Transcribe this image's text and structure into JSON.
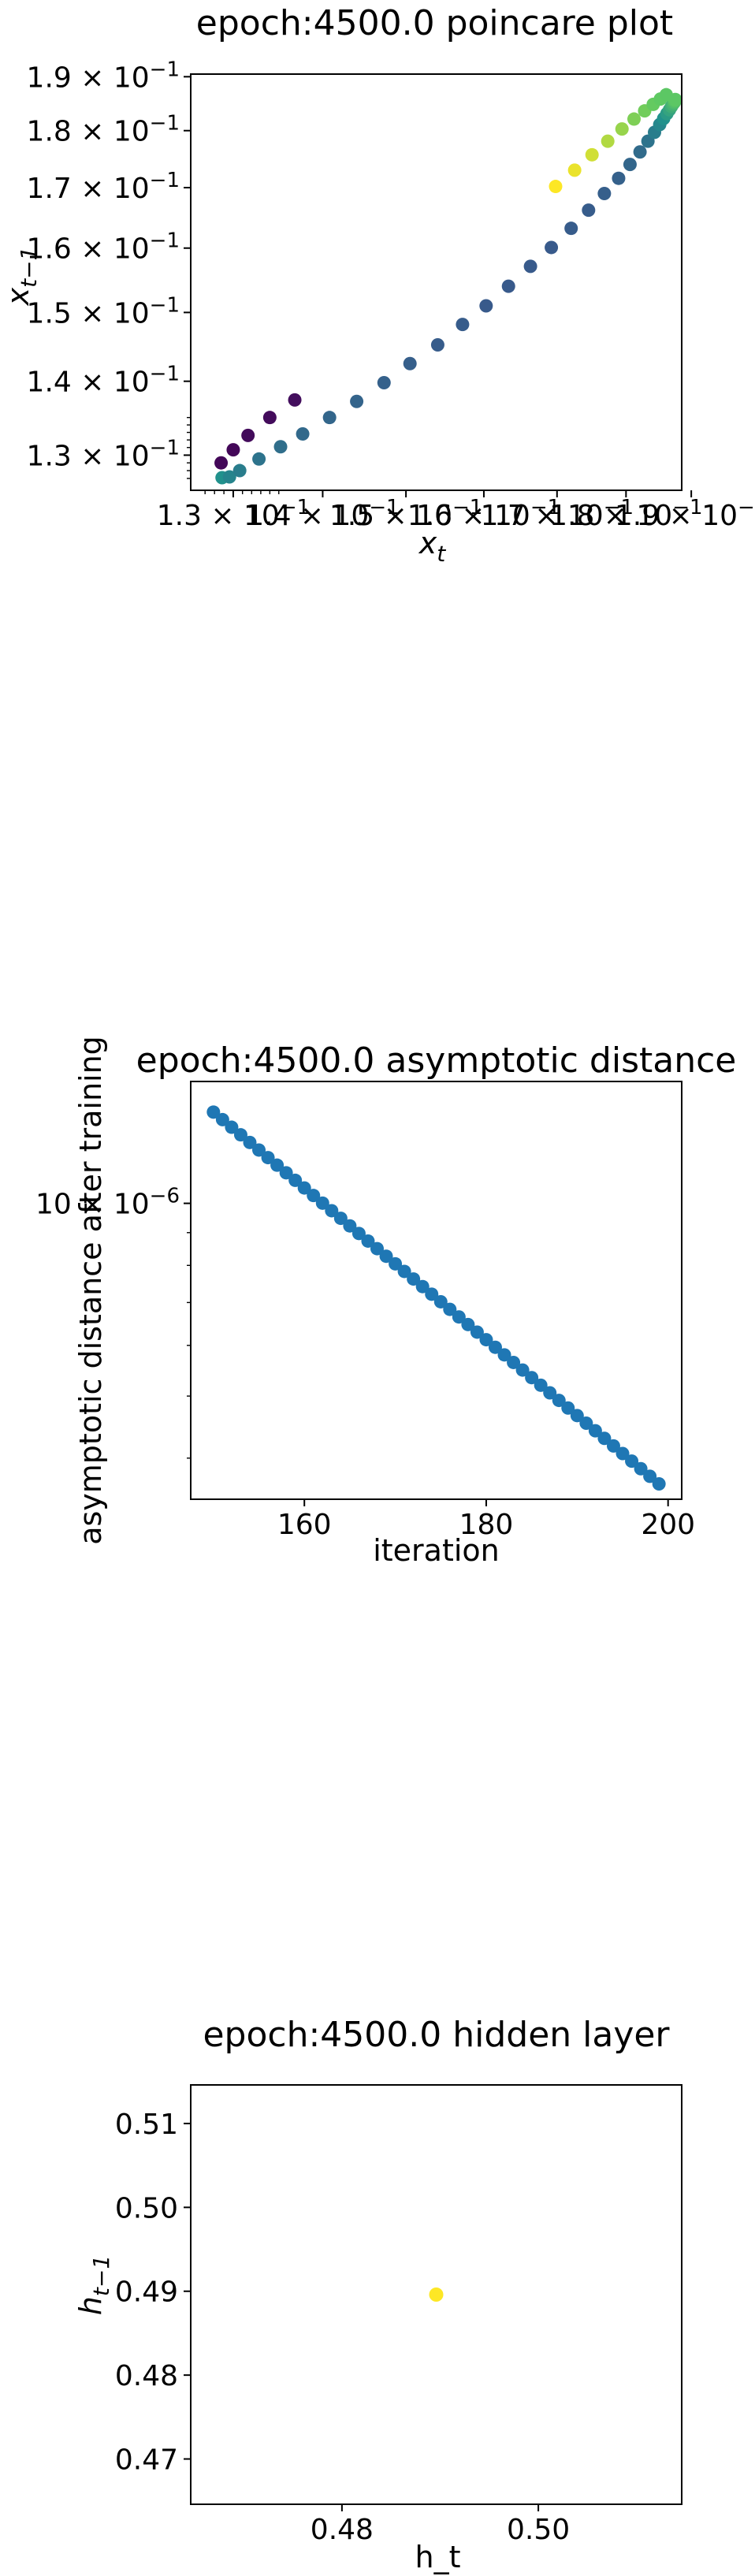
{
  "chart_data": [
    {
      "type": "scatter",
      "title": "epoch:4500.0 poincare plot",
      "xlabel": "x_t",
      "ylabel": "x_{t-1}",
      "xscale": "log",
      "yscale": "log",
      "xlim": [
        0.1255,
        0.1885
      ],
      "ylim": [
        0.1255,
        0.1905
      ],
      "grid": false,
      "legend": "none",
      "colormap": "viridis",
      "x_ticks": [
        0.13,
        0.14,
        0.15,
        0.16,
        0.17,
        0.18,
        0.19
      ],
      "x_tick_labels": [
        {
          "mantissa": "1.3",
          "exponent": "−1"
        },
        {
          "mantissa": "1.4",
          "exponent": "−1"
        },
        {
          "mantissa": "1.5",
          "exponent": "−1"
        },
        {
          "mantissa": "1.6",
          "exponent": "−1"
        },
        {
          "mantissa": "1.7",
          "exponent": "−1"
        },
        {
          "mantissa": "1.8",
          "exponent": "−1"
        },
        {
          "mantissa": "1.9",
          "exponent": "−1"
        }
      ],
      "y_ticks": [
        0.13,
        0.14,
        0.15,
        0.16,
        0.17,
        0.18,
        0.19
      ],
      "y_tick_labels": [
        {
          "mantissa": "1.3",
          "exponent": "−1"
        },
        {
          "mantissa": "1.4",
          "exponent": "−1"
        },
        {
          "mantissa": "1.5",
          "exponent": "−1"
        },
        {
          "mantissa": "1.6",
          "exponent": "−1"
        },
        {
          "mantissa": "1.7",
          "exponent": "−1"
        },
        {
          "mantissa": "1.8",
          "exponent": "−1"
        },
        {
          "mantissa": "1.9",
          "exponent": "−1"
        }
      ],
      "points": [
        {
          "x": 0.1288,
          "y": 0.1271,
          "c": 0.5
        },
        {
          "x": 0.1296,
          "y": 0.1272,
          "c": 0.45
        },
        {
          "x": 0.1307,
          "y": 0.128,
          "c": 0.42
        },
        {
          "x": 0.1328,
          "y": 0.1295,
          "c": 0.38
        },
        {
          "x": 0.1352,
          "y": 0.1311,
          "c": 0.36
        },
        {
          "x": 0.1377,
          "y": 0.1328,
          "c": 0.34
        },
        {
          "x": 0.1408,
          "y": 0.135,
          "c": 0.33
        },
        {
          "x": 0.144,
          "y": 0.1372,
          "c": 0.32
        },
        {
          "x": 0.1473,
          "y": 0.1398,
          "c": 0.31
        },
        {
          "x": 0.1505,
          "y": 0.1425,
          "c": 0.3
        },
        {
          "x": 0.154,
          "y": 0.1452,
          "c": 0.29
        },
        {
          "x": 0.1572,
          "y": 0.1482,
          "c": 0.29
        },
        {
          "x": 0.1603,
          "y": 0.151,
          "c": 0.28
        },
        {
          "x": 0.1633,
          "y": 0.154,
          "c": 0.28
        },
        {
          "x": 0.1663,
          "y": 0.1571,
          "c": 0.28
        },
        {
          "x": 0.1692,
          "y": 0.1601,
          "c": 0.28
        },
        {
          "x": 0.172,
          "y": 0.1632,
          "c": 0.29
        },
        {
          "x": 0.1745,
          "y": 0.1662,
          "c": 0.29
        },
        {
          "x": 0.1768,
          "y": 0.169,
          "c": 0.3
        },
        {
          "x": 0.1789,
          "y": 0.1716,
          "c": 0.31
        },
        {
          "x": 0.1806,
          "y": 0.174,
          "c": 0.33
        },
        {
          "x": 0.1821,
          "y": 0.1762,
          "c": 0.35
        },
        {
          "x": 0.1833,
          "y": 0.1781,
          "c": 0.38
        },
        {
          "x": 0.1843,
          "y": 0.1797,
          "c": 0.42
        },
        {
          "x": 0.1851,
          "y": 0.1811,
          "c": 0.46
        },
        {
          "x": 0.1857,
          "y": 0.1822,
          "c": 0.5
        },
        {
          "x": 0.1862,
          "y": 0.1831,
          "c": 0.54
        },
        {
          "x": 0.1866,
          "y": 0.1838,
          "c": 0.58
        },
        {
          "x": 0.1869,
          "y": 0.1844,
          "c": 0.62
        },
        {
          "x": 0.1871,
          "y": 0.1848,
          "c": 0.65
        },
        {
          "x": 0.1873,
          "y": 0.1851,
          "c": 0.68
        },
        {
          "x": 0.1874,
          "y": 0.1853,
          "c": 0.7
        },
        {
          "x": 0.1874,
          "y": 0.1855,
          "c": 0.72
        },
        {
          "x": 0.1875,
          "y": 0.1856,
          "c": 0.73
        },
        {
          "x": 0.1875,
          "y": 0.1857,
          "c": 0.74
        },
        {
          "x": 0.1287,
          "y": 0.129,
          "c": 0.02
        },
        {
          "x": 0.13,
          "y": 0.1307,
          "c": 0.02
        },
        {
          "x": 0.1316,
          "y": 0.1326,
          "c": 0.03
        },
        {
          "x": 0.134,
          "y": 0.135,
          "c": 0.03
        },
        {
          "x": 0.1368,
          "y": 0.1374,
          "c": 0.04
        },
        {
          "x": 0.1698,
          "y": 0.1702,
          "c": 1.0
        },
        {
          "x": 0.1725,
          "y": 0.173,
          "c": 0.97
        },
        {
          "x": 0.175,
          "y": 0.1757,
          "c": 0.93
        },
        {
          "x": 0.1773,
          "y": 0.1781,
          "c": 0.88
        },
        {
          "x": 0.1794,
          "y": 0.1803,
          "c": 0.84
        },
        {
          "x": 0.1812,
          "y": 0.1821,
          "c": 0.8
        },
        {
          "x": 0.1828,
          "y": 0.1836,
          "c": 0.78
        },
        {
          "x": 0.1841,
          "y": 0.1848,
          "c": 0.76
        },
        {
          "x": 0.1852,
          "y": 0.1858,
          "c": 0.75
        },
        {
          "x": 0.1861,
          "y": 0.1866,
          "c": 0.74
        }
      ]
    },
    {
      "type": "scatter",
      "title": "epoch:4500.0 asymptotic distance",
      "xlabel": "iteration",
      "ylabel": "asymptotic distance after training",
      "xscale": "linear",
      "yscale": "log",
      "xlim": [
        147.5,
        201.5
      ],
      "ylim": [
        3.45e-07,
        1.55e-06
      ],
      "grid": false,
      "legend": "none",
      "color": "#1f77b4",
      "x_ticks": [
        160,
        180,
        200
      ],
      "y_ticks": [
        1e-06
      ],
      "y_tick_labels": [
        {
          "mantissa": "10",
          "exponent": "−6"
        }
      ],
      "x_values": [
        150,
        151,
        152,
        153,
        154,
        155,
        156,
        157,
        158,
        159,
        160,
        161,
        162,
        163,
        164,
        165,
        166,
        167,
        168,
        169,
        170,
        171,
        172,
        173,
        174,
        175,
        176,
        177,
        178,
        179,
        180,
        181,
        182,
        183,
        184,
        185,
        186,
        187,
        188,
        189,
        190,
        191,
        192,
        193,
        194,
        195,
        196,
        197,
        198,
        199
      ],
      "y_values": [
        1.3885e-06,
        1.3512e-06,
        1.3148e-06,
        1.2794e-06,
        1.2449e-06,
        1.2114e-06,
        1.1788e-06,
        1.1471e-06,
        1.1162e-06,
        1.0862e-06,
        1.0569e-06,
        1.0285e-06,
        1.0008e-06,
        9.7386e-07,
        9.4765e-07,
        9.2214e-07,
        8.9732e-07,
        8.7316e-07,
        8.4966e-07,
        8.2679e-07,
        8.0453e-07,
        7.8288e-07,
        7.618e-07,
        7.4129e-07,
        7.2134e-07,
        7.0192e-07,
        6.8302e-07,
        6.6464e-07,
        6.4675e-07,
        6.2934e-07,
        6.124e-07,
        5.9591e-07,
        5.7987e-07,
        5.6426e-07,
        5.4908e-07,
        5.3429e-07,
        5.1991e-07,
        5.0591e-07,
        4.923e-07,
        4.7904e-07,
        4.6615e-07,
        4.536e-07,
        4.4139e-07,
        4.2951e-07,
        4.1795e-07,
        4.067e-07,
        3.9575e-07,
        3.851e-07,
        3.7473e-07,
        3.6464e-07
      ]
    },
    {
      "type": "scatter",
      "title": "epoch:4500.0 hidden layer",
      "xlabel": "h_t",
      "ylabel": "h_{t-1}",
      "xscale": "linear",
      "yscale": "linear",
      "xlim": [
        0.4646,
        0.5146
      ],
      "ylim": [
        0.4646,
        0.5146
      ],
      "grid": false,
      "legend": "none",
      "color": "#fde725",
      "x_ticks": [
        0.48,
        0.5
      ],
      "x_tick_labels": [
        "0.48",
        "0.50"
      ],
      "y_ticks": [
        0.47,
        0.48,
        0.49,
        0.5,
        0.51
      ],
      "y_tick_labels": [
        "0.47",
        "0.48",
        "0.49",
        "0.50",
        "0.51"
      ],
      "points": [
        {
          "x": 0.4896,
          "y": 0.4896
        }
      ]
    }
  ]
}
